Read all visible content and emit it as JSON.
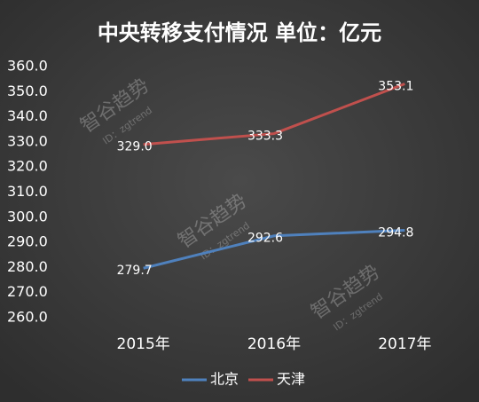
{
  "chart_data": {
    "type": "line",
    "title": "中央转移支付情况 单位：亿元",
    "categories": [
      "2015年",
      "2016年",
      "2017年"
    ],
    "series": [
      {
        "name": "北京",
        "color": "#4f81bd",
        "values": [
          279.7,
          292.6,
          294.8
        ],
        "value_labels": [
          "279.7",
          "292.6",
          "294.8"
        ]
      },
      {
        "name": "天津",
        "color": "#c0504d",
        "values": [
          329.0,
          333.3,
          353.1
        ],
        "value_labels": [
          "329.0",
          "333.3",
          "353.1"
        ]
      }
    ],
    "ylim": [
      260,
      360
    ],
    "yticks": [
      {
        "value": 260,
        "label": "260.0"
      },
      {
        "value": 270,
        "label": "270.0"
      },
      {
        "value": 280,
        "label": "280.0"
      },
      {
        "value": 290,
        "label": "290.0"
      },
      {
        "value": 300,
        "label": "300.0"
      },
      {
        "value": 310,
        "label": "310.0"
      },
      {
        "value": 320,
        "label": "320.0"
      },
      {
        "value": 330,
        "label": "330.0"
      },
      {
        "value": 340,
        "label": "340.0"
      },
      {
        "value": 350,
        "label": "350.0"
      },
      {
        "value": 360,
        "label": "360.0"
      }
    ],
    "grid": false,
    "legend": "bottom",
    "watermark": [
      "智谷趋势",
      "ID：zgtrend"
    ]
  }
}
